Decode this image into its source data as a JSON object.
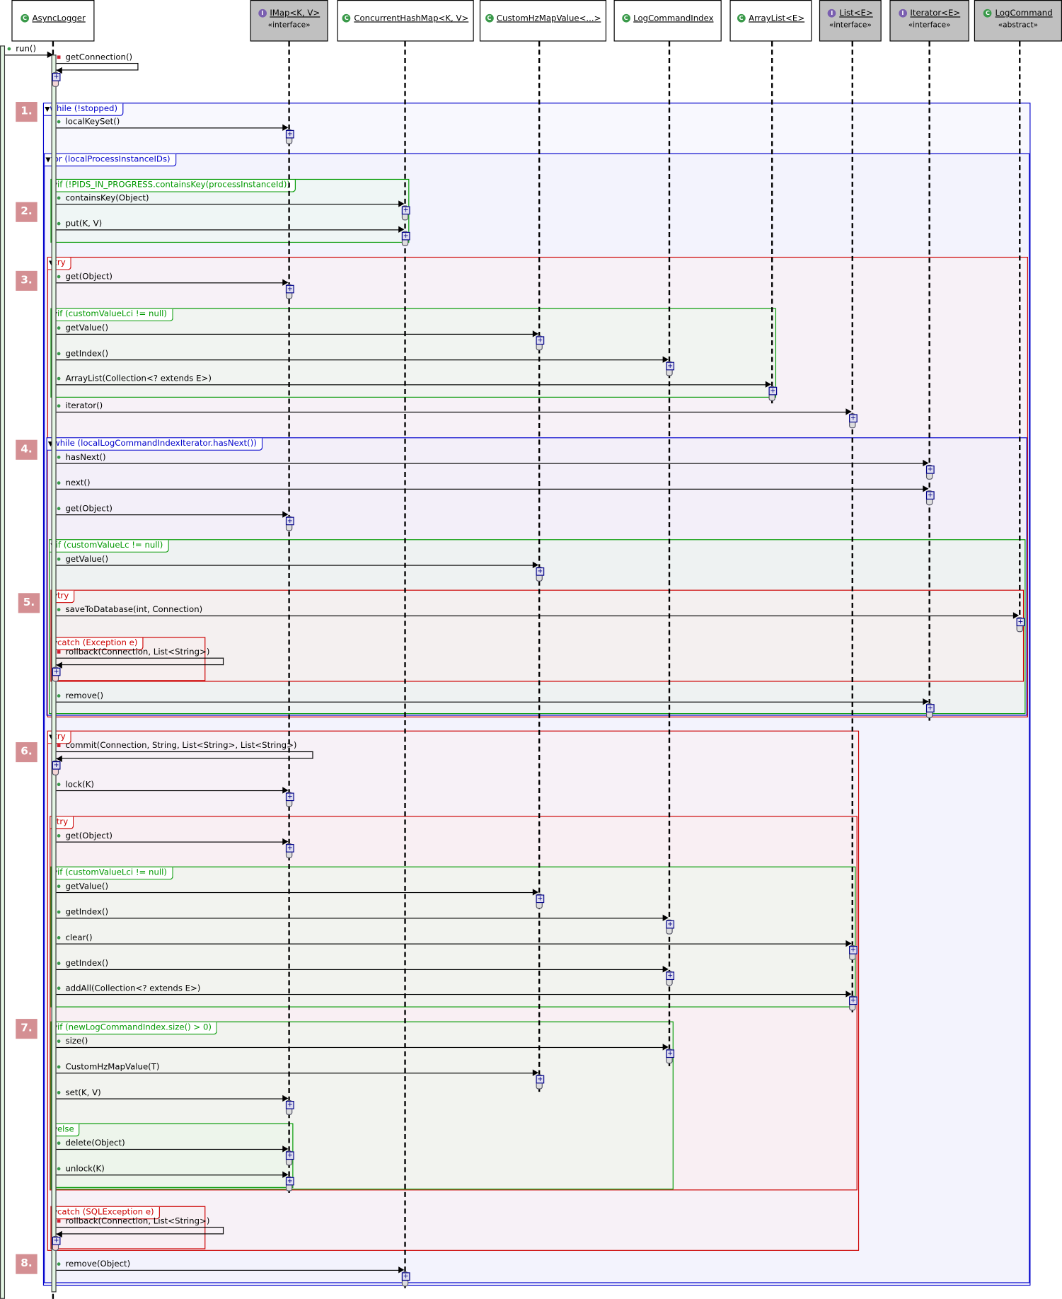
{
  "participants": [
    {
      "name": "AsyncLogger",
      "stereotype": "",
      "kind": "class",
      "icon": "class-icon"
    },
    {
      "name": "IMap<K, V>",
      "stereotype": "«interface»",
      "kind": "interface",
      "icon": "interface-icon"
    },
    {
      "name": "ConcurrentHashMap<K, V>",
      "stereotype": "",
      "kind": "class",
      "icon": "class-icon"
    },
    {
      "name": "CustomHzMapValue<...>",
      "stereotype": "",
      "kind": "final-class",
      "icon": "final-class-icon"
    },
    {
      "name": "LogCommandIndex",
      "stereotype": "",
      "kind": "final-class",
      "icon": "final-class-icon"
    },
    {
      "name": "ArrayList<E>",
      "stereotype": "",
      "kind": "class",
      "icon": "class-icon"
    },
    {
      "name": "List<E>",
      "stereotype": "«interface»",
      "kind": "interface",
      "icon": "interface-icon"
    },
    {
      "name": "Iterator<E>",
      "stereotype": "«interface»",
      "kind": "interface",
      "icon": "interface-icon"
    },
    {
      "name": "LogCommand",
      "stereotype": "«abstract»",
      "kind": "abstract",
      "icon": "abstract-class-icon"
    }
  ],
  "colors": {
    "loop": "#0000cc",
    "alt": "#009900",
    "try": "#cc0000",
    "badge": "#d48f93",
    "interface_box": "#c0c0c0"
  },
  "steps": [
    "1.",
    "2.",
    "3.",
    "4.",
    "5.",
    "6.",
    "7.",
    "8."
  ],
  "fragments": [
    {
      "kind": "loop",
      "label": "while (!stopped)"
    },
    {
      "kind": "loop",
      "label": "for (localProcessInstanceIDs)"
    },
    {
      "kind": "alt",
      "label": "if (!PIDS_IN_PROGRESS.containsKey(processInstanceId))"
    },
    {
      "kind": "try",
      "label": "try"
    },
    {
      "kind": "alt",
      "label": "if (customValueLci != null)"
    },
    {
      "kind": "loop",
      "label": "while (localLogCommandIndexIterator.hasNext())"
    },
    {
      "kind": "alt",
      "label": "if (customValueLc != null)"
    },
    {
      "kind": "try",
      "label": "try"
    },
    {
      "kind": "try",
      "label": "catch (Exception e)"
    },
    {
      "kind": "try",
      "label": "try"
    },
    {
      "kind": "try",
      "label": "try"
    },
    {
      "kind": "alt",
      "label": "if (customValueLci != null)"
    },
    {
      "kind": "alt",
      "label": "if (newLogCommandIndex.size() > 0)"
    },
    {
      "kind": "alt",
      "label": "else"
    },
    {
      "kind": "try",
      "label": "catch (SQLException e)"
    }
  ],
  "messages": [
    {
      "label": "run()",
      "to": "AsyncLogger",
      "vis": "public",
      "type": "entry"
    },
    {
      "label": "getConnection()",
      "to": "AsyncLogger",
      "vis": "private",
      "type": "self"
    },
    {
      "label": "localKeySet()",
      "to": "IMap<K, V>",
      "vis": "public"
    },
    {
      "label": "containsKey(Object)",
      "to": "ConcurrentHashMap<K, V>",
      "vis": "public"
    },
    {
      "label": "put(K, V)",
      "to": "ConcurrentHashMap<K, V>",
      "vis": "public"
    },
    {
      "label": "get(Object)",
      "to": "IMap<K, V>",
      "vis": "public"
    },
    {
      "label": "getValue()",
      "to": "CustomHzMapValue<...>",
      "vis": "public"
    },
    {
      "label": "getIndex()",
      "to": "LogCommandIndex",
      "vis": "public"
    },
    {
      "label": "ArrayList(Collection<? extends E>)",
      "to": "ArrayList<E>",
      "vis": "public"
    },
    {
      "label": "iterator()",
      "to": "List<E>",
      "vis": "public"
    },
    {
      "label": "hasNext()",
      "to": "Iterator<E>",
      "vis": "public"
    },
    {
      "label": "next()",
      "to": "Iterator<E>",
      "vis": "public"
    },
    {
      "label": "get(Object)",
      "to": "IMap<K, V>",
      "vis": "public"
    },
    {
      "label": "getValue()",
      "to": "CustomHzMapValue<...>",
      "vis": "public"
    },
    {
      "label": "saveToDatabase(int, Connection)",
      "to": "LogCommand",
      "vis": "public"
    },
    {
      "label": "rollback(Connection, List<String>)",
      "to": "AsyncLogger",
      "vis": "private",
      "type": "self"
    },
    {
      "label": "remove()",
      "to": "Iterator<E>",
      "vis": "public"
    },
    {
      "label": "commit(Connection, String, List<String>, List<String>)",
      "to": "AsyncLogger",
      "vis": "private",
      "type": "self"
    },
    {
      "label": "lock(K)",
      "to": "IMap<K, V>",
      "vis": "public"
    },
    {
      "label": "get(Object)",
      "to": "IMap<K, V>",
      "vis": "public"
    },
    {
      "label": "getValue()",
      "to": "CustomHzMapValue<...>",
      "vis": "public"
    },
    {
      "label": "getIndex()",
      "to": "LogCommandIndex",
      "vis": "public"
    },
    {
      "label": "clear()",
      "to": "List<E>",
      "vis": "public"
    },
    {
      "label": "getIndex()",
      "to": "LogCommandIndex",
      "vis": "public"
    },
    {
      "label": "addAll(Collection<? extends E>)",
      "to": "List<E>",
      "vis": "public"
    },
    {
      "label": "size()",
      "to": "LogCommandIndex",
      "vis": "public"
    },
    {
      "label": "CustomHzMapValue(T)",
      "to": "CustomHzMapValue<...>",
      "vis": "public"
    },
    {
      "label": "set(K, V)",
      "to": "IMap<K, V>",
      "vis": "public"
    },
    {
      "label": "delete(Object)",
      "to": "IMap<K, V>",
      "vis": "public"
    },
    {
      "label": "unlock(K)",
      "to": "IMap<K, V>",
      "vis": "public"
    },
    {
      "label": "rollback(Connection, List<String>)",
      "to": "AsyncLogger",
      "vis": "private",
      "type": "self"
    },
    {
      "label": "remove(Object)",
      "to": "ConcurrentHashMap<K, V>",
      "vis": "public"
    }
  ]
}
